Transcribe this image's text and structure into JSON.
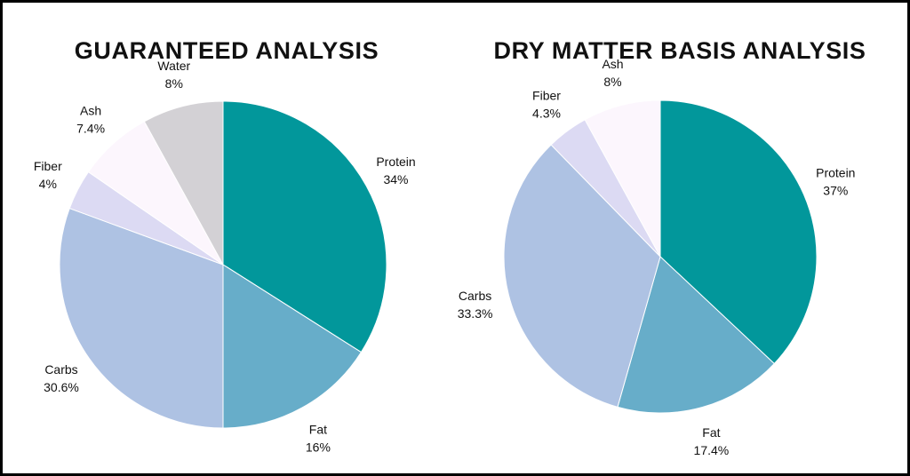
{
  "chart_data": [
    {
      "type": "pie",
      "title": "GUARANTEED ANALYSIS",
      "slices": [
        {
          "name": "Protein",
          "value": 34,
          "label": "34%",
          "color": "#02979b"
        },
        {
          "name": "Fat",
          "value": 16,
          "label": "16%",
          "color": "#67adc9"
        },
        {
          "name": "Carbs",
          "value": 30.6,
          "label": "30.6%",
          "color": "#aec2e3"
        },
        {
          "name": "Fiber",
          "value": 4,
          "label": "4%",
          "color": "#dcdaf3"
        },
        {
          "name": "Ash",
          "value": 7.4,
          "label": "7.4%",
          "color": "#fcf6fd"
        },
        {
          "name": "Water",
          "value": 8,
          "label": "8%",
          "color": "#d3d1d5"
        }
      ]
    },
    {
      "type": "pie",
      "title": "DRY MATTER BASIS ANALYSIS",
      "slices": [
        {
          "name": "Protein",
          "value": 37,
          "label": "37%",
          "color": "#02979b"
        },
        {
          "name": "Fat",
          "value": 17.4,
          "label": "17.4%",
          "color": "#67adc9"
        },
        {
          "name": "Carbs",
          "value": 33.3,
          "label": "33.3%",
          "color": "#aec2e3"
        },
        {
          "name": "Fiber",
          "value": 4.3,
          "label": "4.3%",
          "color": "#dcdaf3"
        },
        {
          "name": "Ash",
          "value": 8,
          "label": "8%",
          "color": "#fcf6fd"
        }
      ]
    }
  ]
}
